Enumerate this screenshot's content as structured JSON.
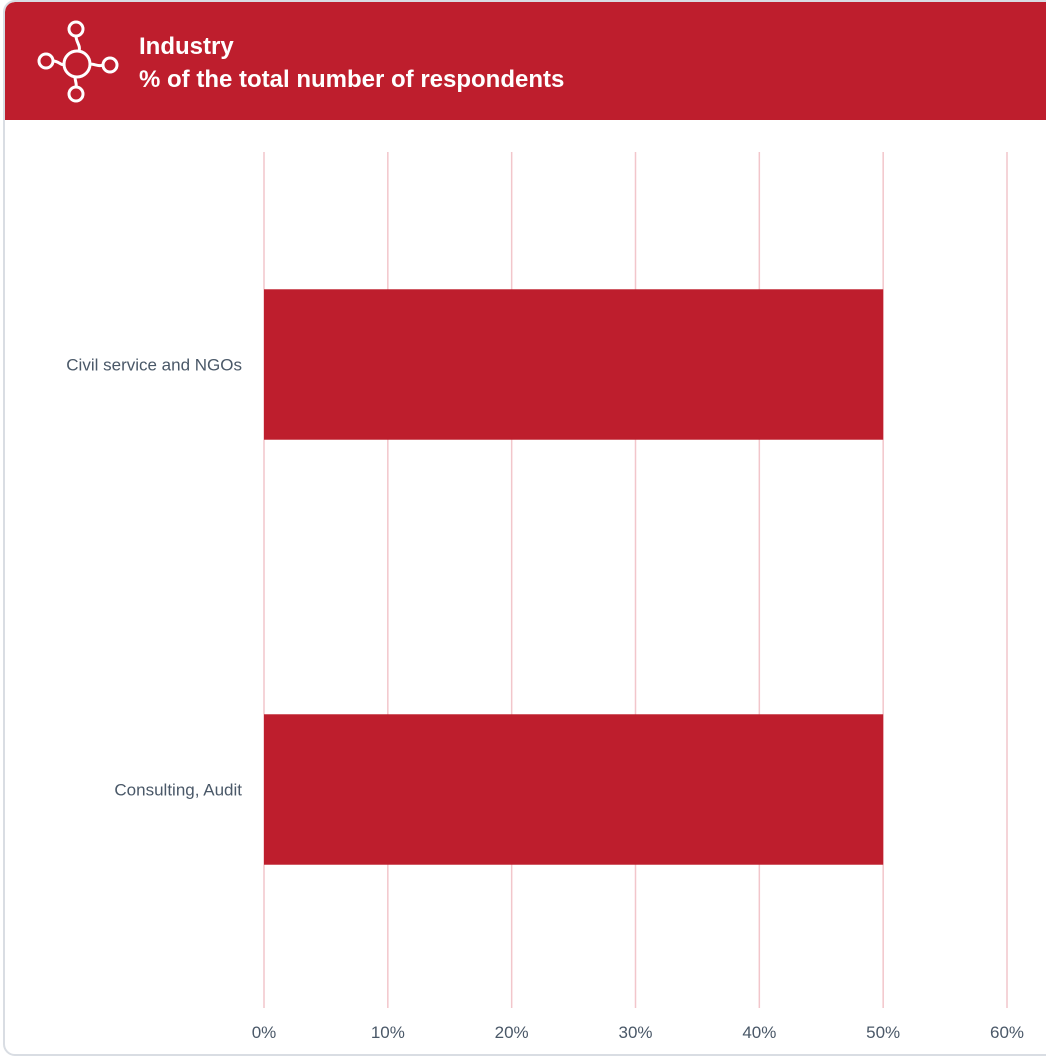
{
  "header": {
    "title_line1": "Industry",
    "title_line2": "% of the total number of respondents",
    "icon": "network-nodes-icon"
  },
  "colors": {
    "accent": "#be1e2d",
    "grid": "#f2c6cb",
    "label": "#4a5868",
    "border": "#d9dde3"
  },
  "chart_data": {
    "type": "bar",
    "orientation": "horizontal",
    "categories": [
      "Civil service and NGOs",
      "Consulting, Audit"
    ],
    "values": [
      50,
      50
    ],
    "xlim": [
      0,
      60
    ],
    "xticks": [
      "0%",
      "10%",
      "20%",
      "30%",
      "40%",
      "50%",
      "60%"
    ],
    "grid": "vertical",
    "legend": "none"
  }
}
